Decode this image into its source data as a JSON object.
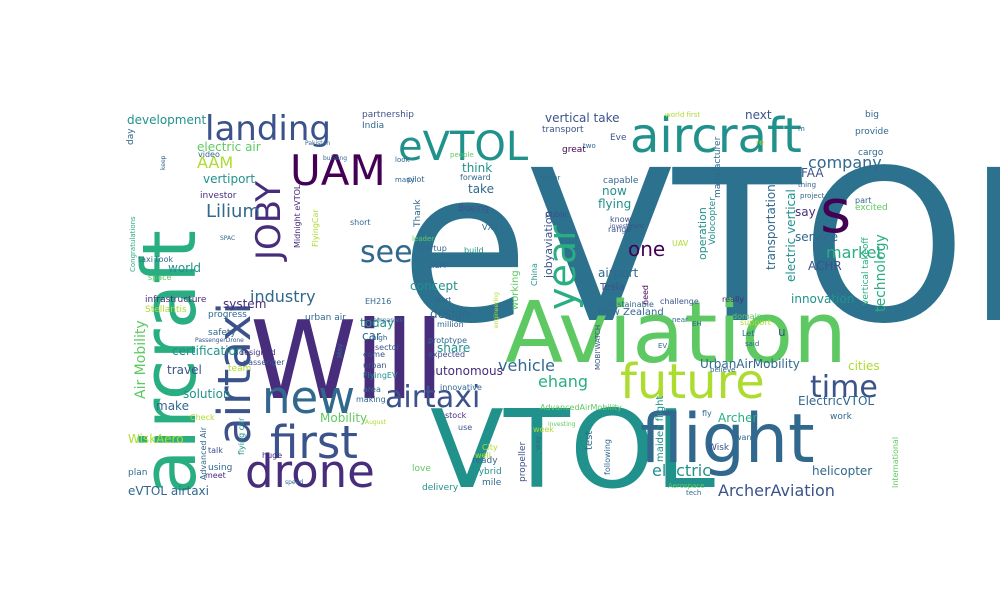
{
  "palette": {
    "dark_purple": "#440154",
    "indigo": "#472d7b",
    "slate_blue": "#3b528b",
    "steel_blue": "#31688e",
    "teal_blue": "#2c728e",
    "teal": "#21918c",
    "sea_green": "#28ae80",
    "green": "#5ec962",
    "lime": "#addc30",
    "yellow": "#fde725"
  },
  "words": [
    {
      "text": "eVTOL",
      "color": "#2c728e"
    },
    {
      "text": "Will",
      "color": "#472d7b"
    },
    {
      "text": "VTOL",
      "color": "#21918c"
    },
    {
      "text": "Aviation",
      "color": "#5ec962"
    },
    {
      "text": "aircraft",
      "color": "#28ae80"
    },
    {
      "text": "aircraft",
      "color": "#21918c"
    },
    {
      "text": "flight",
      "color": "#31688e"
    },
    {
      "text": "airtaxi",
      "color": "#3b528b"
    },
    {
      "text": "future",
      "color": "#addc30"
    },
    {
      "text": "first",
      "color": "#3b528b"
    },
    {
      "text": "drone",
      "color": "#472d7b"
    },
    {
      "text": "new",
      "color": "#31688e"
    },
    {
      "text": "s",
      "color": "#440154"
    },
    {
      "text": "eVTOL",
      "color": "#21918c"
    },
    {
      "text": "UAM",
      "color": "#440154"
    },
    {
      "text": "JOBY",
      "color": "#472d7b"
    },
    {
      "text": "landing",
      "color": "#3b528b"
    },
    {
      "text": "year",
      "color": "#28ae80"
    },
    {
      "text": "time",
      "color": "#3b528b"
    },
    {
      "text": "airtaxi",
      "color": "#3b528b"
    },
    {
      "text": "see",
      "color": "#31688e"
    },
    {
      "text": "ArcherAviation",
      "color": "#3b528b"
    },
    {
      "text": "company",
      "color": "#31688e"
    },
    {
      "text": "market",
      "color": "#28ae80"
    },
    {
      "text": "technology",
      "color": "#28ae80"
    },
    {
      "text": "one",
      "color": "#440154"
    },
    {
      "text": "industry",
      "color": "#31688e"
    },
    {
      "text": "Lilium",
      "color": "#31688e"
    },
    {
      "text": "AAM",
      "color": "#addc30"
    },
    {
      "text": "electric",
      "color": "#21918c"
    },
    {
      "text": "vehicle",
      "color": "#31688e"
    },
    {
      "text": "ehang",
      "color": "#28ae80"
    },
    {
      "text": "Air Mobility",
      "color": "#5ec962"
    },
    {
      "text": "vertical take",
      "color": "#3b528b"
    },
    {
      "text": "vertiport",
      "color": "#21918c"
    },
    {
      "text": "development",
      "color": "#21918c"
    },
    {
      "text": "electric air",
      "color": "#5ec962"
    },
    {
      "text": "certification",
      "color": "#21918c"
    },
    {
      "text": "solution",
      "color": "#21918c"
    },
    {
      "text": "travel",
      "color": "#3b528b"
    },
    {
      "text": "make",
      "color": "#31688e"
    },
    {
      "text": "WiskAero",
      "color": "#addc30"
    },
    {
      "text": "eVTOL airtaxi",
      "color": "#31688e"
    },
    {
      "text": "helicopter",
      "color": "#31688e"
    },
    {
      "text": "UrbanAirMobility",
      "color": "#31688e"
    },
    {
      "text": "ElectricVTOL",
      "color": "#31688e"
    },
    {
      "text": "Archer",
      "color": "#28ae80"
    },
    {
      "text": "innovation",
      "color": "#21918c"
    },
    {
      "text": "cities",
      "color": "#addc30"
    },
    {
      "text": "service",
      "color": "#31688e"
    },
    {
      "text": "ACHR",
      "color": "#3b528b"
    },
    {
      "text": "autonomous",
      "color": "#472d7b"
    },
    {
      "text": "share",
      "color": "#21918c"
    },
    {
      "text": "design",
      "color": "#31688e"
    },
    {
      "text": "concept",
      "color": "#21918c"
    },
    {
      "text": "airport",
      "color": "#31688e"
    },
    {
      "text": "flying",
      "color": "#21918c"
    },
    {
      "text": "take",
      "color": "#31688e"
    },
    {
      "text": "think",
      "color": "#21918c"
    },
    {
      "text": "now",
      "color": "#21918c"
    },
    {
      "text": "next",
      "color": "#3b528b"
    },
    {
      "text": "FAA",
      "color": "#3b528b"
    },
    {
      "text": "say",
      "color": "#472d7b"
    },
    {
      "text": "world",
      "color": "#21918c"
    },
    {
      "text": "system",
      "color": "#472d7b"
    },
    {
      "text": "today",
      "color": "#21918c"
    },
    {
      "text": "car",
      "color": "#31688e"
    },
    {
      "text": "Mobility",
      "color": "#5ec962"
    },
    {
      "text": "transportation",
      "color": "#31688e"
    },
    {
      "text": "electric vertical",
      "color": "#21918c"
    },
    {
      "text": "vertical takeoff",
      "color": "#28ae80"
    },
    {
      "text": "jobyaviation",
      "color": "#3b528b"
    },
    {
      "text": "operation",
      "color": "#21918c"
    },
    {
      "text": "u",
      "color": "#3b528b"
    },
    {
      "text": "work",
      "color": "#31688e"
    },
    {
      "text": "Wisk",
      "color": "#3b528b"
    },
    {
      "text": "maiden flight",
      "color": "#21918c"
    },
    {
      "text": "test",
      "color": "#31688e"
    },
    {
      "text": "propeller",
      "color": "#3b528b"
    },
    {
      "text": "hybrid",
      "color": "#21918c"
    },
    {
      "text": "mile",
      "color": "#31688e"
    },
    {
      "text": "delivery",
      "color": "#21918c"
    },
    {
      "text": "love",
      "color": "#5ec962"
    },
    {
      "text": "ready",
      "color": "#31688e"
    },
    {
      "text": "working",
      "color": "#5ec962"
    },
    {
      "text": "Tesla",
      "color": "#3b528b"
    },
    {
      "text": "New Zealand",
      "color": "#31688e"
    },
    {
      "text": "Boeing",
      "color": "#3b528b"
    },
    {
      "text": "partnership",
      "color": "#3b528b"
    },
    {
      "text": "India",
      "color": "#31688e"
    },
    {
      "text": "transport",
      "color": "#3b528b"
    },
    {
      "text": "great",
      "color": "#440154"
    },
    {
      "text": "Eve",
      "color": "#3b528b"
    },
    {
      "text": "capable",
      "color": "#31688e"
    },
    {
      "text": "manufacturer",
      "color": "#31688e"
    },
    {
      "text": "Volocopter",
      "color": "#21918c"
    },
    {
      "text": "investor",
      "color": "#472d7b"
    },
    {
      "text": "Midnight eVTOL",
      "color": "#472d7b"
    },
    {
      "text": "FlyingCar",
      "color": "#addc30"
    },
    {
      "text": "startup",
      "color": "#31688e"
    },
    {
      "text": "infrastructure",
      "color": "#472d7b"
    },
    {
      "text": "Stellantis",
      "color": "#addc30"
    },
    {
      "text": "safety",
      "color": "#31688e"
    },
    {
      "text": "progress",
      "color": "#31688e"
    },
    {
      "text": "urban air",
      "color": "#31688e"
    },
    {
      "text": "team",
      "color": "#addc30"
    },
    {
      "text": "flying car",
      "color": "#21918c"
    },
    {
      "text": "huge",
      "color": "#472d7b"
    },
    {
      "text": "talk",
      "color": "#3b528b"
    },
    {
      "text": "using",
      "color": "#31688e"
    },
    {
      "text": "plan",
      "color": "#31688e"
    },
    {
      "text": "meet",
      "color": "#472d7b"
    },
    {
      "text": "Advanced Air",
      "color": "#31688e"
    },
    {
      "text": "Congratulations",
      "color": "#28ae80"
    },
    {
      "text": "taxi took",
      "color": "#31688e"
    },
    {
      "text": "space",
      "color": "#5ec962"
    },
    {
      "text": "day",
      "color": "#31688e"
    },
    {
      "text": "video",
      "color": "#31688e"
    },
    {
      "text": "Thank",
      "color": "#31688e"
    },
    {
      "text": "pilot",
      "color": "#31688e"
    },
    {
      "text": "forward",
      "color": "#31688e"
    },
    {
      "text": "build",
      "color": "#21918c"
    },
    {
      "text": "innovative",
      "color": "#31688e"
    },
    {
      "text": "prototype",
      "color": "#31688e"
    },
    {
      "text": "expected",
      "color": "#3b528b"
    },
    {
      "text": "million",
      "color": "#31688e"
    },
    {
      "text": "EH216",
      "color": "#31688e"
    },
    {
      "text": "LILM",
      "color": "#31688e"
    },
    {
      "text": "VX4",
      "color": "#31688e"
    },
    {
      "text": "PassengerDrone",
      "color": "#3b528b"
    },
    {
      "text": "designed",
      "color": "#472d7b"
    },
    {
      "text": "passenger",
      "color": "#3b528b"
    },
    {
      "text": "Check",
      "color": "#addc30"
    },
    {
      "text": "sector",
      "color": "#3b528b"
    },
    {
      "text": "come",
      "color": "#3b528b"
    },
    {
      "text": "urban",
      "color": "#3b528b"
    },
    {
      "text": "FlyingEV",
      "color": "#21918c"
    },
    {
      "text": "area",
      "color": "#31688e"
    },
    {
      "text": "making",
      "color": "#31688e"
    },
    {
      "text": "stock",
      "color": "#472d7b"
    },
    {
      "text": "use",
      "color": "#3b528b"
    },
    {
      "text": "City",
      "color": "#addc30"
    },
    {
      "text": "well",
      "color": "#addc30"
    },
    {
      "text": "AdvancedAirMobility",
      "color": "#5ec962"
    },
    {
      "text": "week",
      "color": "#addc30"
    },
    {
      "text": "China",
      "color": "#21918c"
    },
    {
      "text": "public",
      "color": "#3b528b"
    },
    {
      "text": "MOBI'WATCH",
      "color": "#3b528b"
    },
    {
      "text": "range",
      "color": "#3b528b"
    },
    {
      "text": "know",
      "color": "#3b528b"
    },
    {
      "text": "investment",
      "color": "#3b528b"
    },
    {
      "text": "UAV",
      "color": "#addc30"
    },
    {
      "text": "sustainable",
      "color": "#31688e"
    },
    {
      "text": "challenge",
      "color": "#3b528b"
    },
    {
      "text": "need",
      "color": "#440154"
    },
    {
      "text": "really",
      "color": "#472d7b"
    },
    {
      "text": "EH",
      "color": "#31688e"
    },
    {
      "text": "support",
      "color": "#addc30"
    },
    {
      "text": "said",
      "color": "#31688e"
    },
    {
      "text": "believe",
      "color": "#31688e"
    },
    {
      "text": "Let",
      "color": "#31688e"
    },
    {
      "text": "EV",
      "color": "#31688e"
    },
    {
      "text": "near",
      "color": "#31688e"
    },
    {
      "text": "fly",
      "color": "#31688e"
    },
    {
      "text": "want",
      "color": "#31688e"
    },
    {
      "text": "tech",
      "color": "#31688e"
    },
    {
      "text": "Aerospace",
      "color": "#5ec962"
    },
    {
      "text": "following",
      "color": "#31688e"
    },
    {
      "text": "way",
      "color": "#31688e"
    },
    {
      "text": "International",
      "color": "#5ec962"
    },
    {
      "text": "domain",
      "color": "#5ec962"
    },
    {
      "text": "re",
      "color": "#addc30"
    },
    {
      "text": "provide",
      "color": "#31688e"
    },
    {
      "text": "big",
      "color": "#31688e"
    },
    {
      "text": "cargo",
      "color": "#31688e"
    },
    {
      "text": "excited",
      "color": "#5ec962"
    },
    {
      "text": "part",
      "color": "#31688e"
    },
    {
      "text": "world first",
      "color": "#addc30"
    },
    {
      "text": "thing",
      "color": "#31688e"
    },
    {
      "text": "project",
      "color": "#31688e"
    },
    {
      "text": "major",
      "color": "#31688e"
    },
    {
      "text": "road",
      "color": "#31688e"
    },
    {
      "text": "leader",
      "color": "#5ec962"
    },
    {
      "text": "look",
      "color": "#31688e"
    },
    {
      "text": "many",
      "color": "#31688e"
    },
    {
      "text": "short",
      "color": "#31688e"
    },
    {
      "text": "people",
      "color": "#5ec962"
    },
    {
      "text": "August",
      "color": "#addc30"
    },
    {
      "text": "Pakistan",
      "color": "#31688e"
    },
    {
      "text": "companies",
      "color": "#31688e"
    },
    {
      "text": "high",
      "color": "#31688e"
    },
    {
      "text": "building",
      "color": "#31688e"
    },
    {
      "text": "engineering",
      "color": "#addc30"
    },
    {
      "text": "May",
      "color": "#31688e"
    },
    {
      "text": "start",
      "color": "#31688e"
    },
    {
      "text": "two",
      "color": "#31688e"
    },
    {
      "text": "investing",
      "color": "#5ec962"
    },
    {
      "text": "SPAC",
      "color": "#31688e"
    },
    {
      "text": "keep",
      "color": "#31688e"
    },
    {
      "text": "speed",
      "color": "#31688e"
    },
    {
      "text": "m",
      "color": "#31688e"
    }
  ]
}
